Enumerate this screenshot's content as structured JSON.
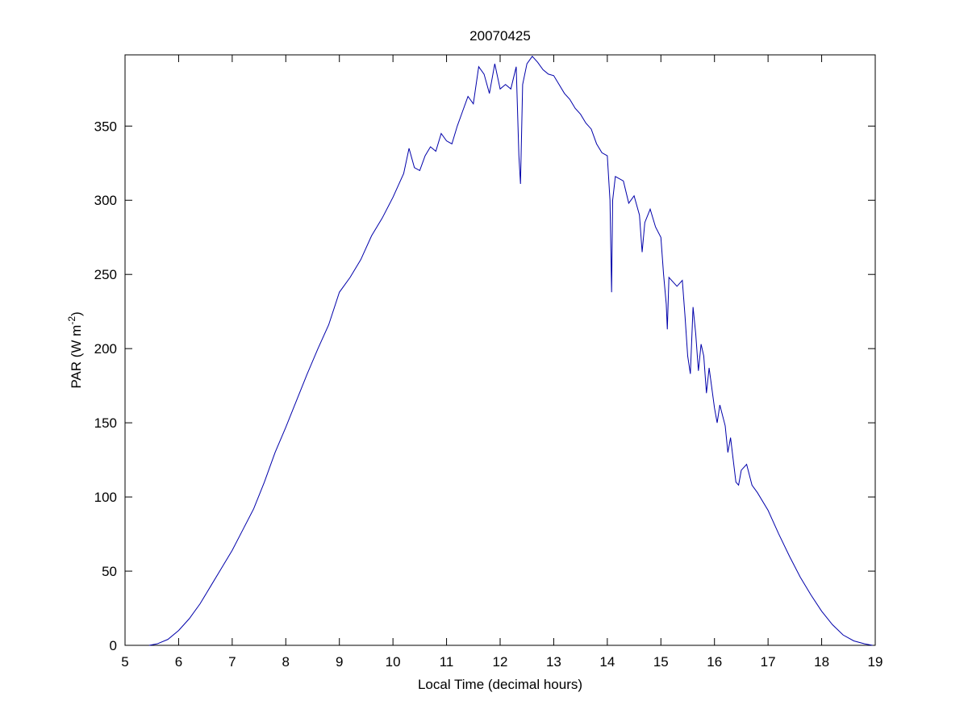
{
  "chart_data": {
    "type": "line",
    "title": "20070425",
    "xlabel": "Local Time (decimal hours)",
    "ylabel": {
      "text": "PAR (W m",
      "superscript": "-2",
      "suffix": ")"
    },
    "xlim": [
      5,
      19
    ],
    "xticks": [
      5,
      6,
      7,
      8,
      9,
      10,
      11,
      12,
      13,
      14,
      15,
      16,
      17,
      18,
      19
    ],
    "ylim": [
      0,
      398
    ],
    "yticks": [
      0,
      50,
      100,
      150,
      200,
      250,
      300,
      350
    ],
    "grid": false,
    "series": [
      {
        "color": "#0000aa",
        "x": [
          5.45,
          5.6,
          5.8,
          6.0,
          6.2,
          6.4,
          6.6,
          6.8,
          7.0,
          7.2,
          7.4,
          7.6,
          7.8,
          8.0,
          8.2,
          8.4,
          8.6,
          8.8,
          9.0,
          9.2,
          9.4,
          9.6,
          9.8,
          10.0,
          10.1,
          10.2,
          10.3,
          10.4,
          10.5,
          10.6,
          10.7,
          10.8,
          10.9,
          11.0,
          11.1,
          11.2,
          11.3,
          11.4,
          11.5,
          11.6,
          11.7,
          11.8,
          11.9,
          12.0,
          12.1,
          12.2,
          12.3,
          12.35,
          12.38,
          12.42,
          12.5,
          12.6,
          12.7,
          12.8,
          12.9,
          13.0,
          13.1,
          13.2,
          13.3,
          13.4,
          13.5,
          13.6,
          13.7,
          13.8,
          13.9,
          14.0,
          14.05,
          14.08,
          14.1,
          14.15,
          14.3,
          14.4,
          14.5,
          14.6,
          14.65,
          14.7,
          14.8,
          14.9,
          15.0,
          15.05,
          15.1,
          15.12,
          15.15,
          15.3,
          15.4,
          15.45,
          15.5,
          15.55,
          15.6,
          15.65,
          15.7,
          15.75,
          15.8,
          15.85,
          15.9,
          16.0,
          16.05,
          16.1,
          16.2,
          16.25,
          16.3,
          16.4,
          16.45,
          16.5,
          16.6,
          16.7,
          16.8,
          17.0,
          17.2,
          17.4,
          17.6,
          17.8,
          18.0,
          18.2,
          18.4,
          18.6,
          18.8,
          18.95
        ],
        "values": [
          0,
          1,
          4,
          10,
          18,
          28,
          40,
          52,
          64,
          78,
          92,
          110,
          130,
          147,
          165,
          183,
          200,
          216,
          238,
          248,
          260,
          276,
          288,
          302,
          310,
          318,
          335,
          322,
          320,
          330,
          336,
          333,
          345,
          340,
          338,
          350,
          360,
          370,
          365,
          390,
          385,
          372,
          392,
          375,
          378,
          375,
          390,
          330,
          311,
          378,
          392,
          397,
          393,
          388,
          385,
          384,
          378,
          372,
          368,
          362,
          358,
          352,
          348,
          338,
          332,
          330,
          300,
          238,
          300,
          316,
          313,
          298,
          303,
          290,
          265,
          285,
          294,
          282,
          275,
          250,
          230,
          213,
          248,
          242,
          246,
          222,
          195,
          183,
          228,
          210,
          185,
          203,
          195,
          170,
          187,
          160,
          150,
          162,
          148,
          130,
          140,
          110,
          108,
          118,
          122,
          108,
          103,
          91,
          75,
          60,
          46,
          34,
          23,
          14,
          7,
          3,
          1,
          0
        ]
      }
    ]
  }
}
